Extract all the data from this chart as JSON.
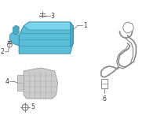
{
  "bg_color": "#ffffff",
  "blue": "#5bbdd6",
  "blue_edge": "#3a8aaa",
  "gray": "#cccccc",
  "gray_edge": "#999999",
  "dark": "#666666",
  "label_color": "#333333",
  "label_fs": 5.5,
  "figsize": [
    2.0,
    1.47
  ],
  "dpi": 100
}
